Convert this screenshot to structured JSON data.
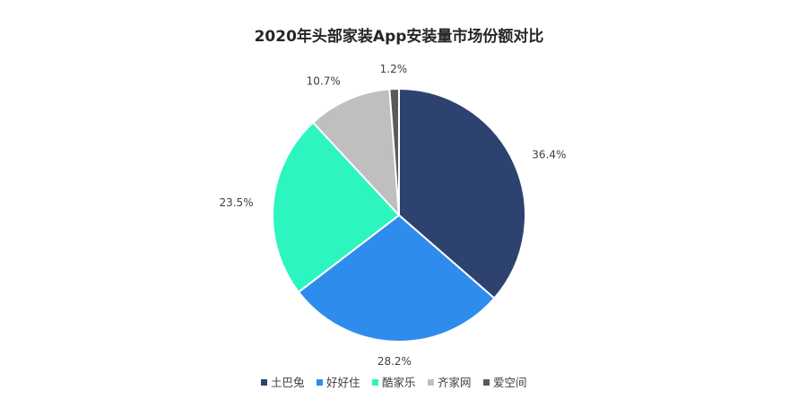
{
  "chart_data": {
    "type": "pie",
    "title": "2020年头部家装App安装量市场份额对比",
    "slices": [
      {
        "name": "土巴兔",
        "value": 36.4,
        "label": "36.4%",
        "color": "#2e4270"
      },
      {
        "name": "好好住",
        "value": 28.2,
        "label": "28.2%",
        "color": "#2e8ced"
      },
      {
        "name": "酷家乐",
        "value": 23.5,
        "label": "23.5%",
        "color": "#2df5bf"
      },
      {
        "name": "齐家网",
        "value": 10.7,
        "label": "10.7%",
        "color": "#bfbfbf"
      },
      {
        "name": "爱空间",
        "value": 1.2,
        "label": "1.2%",
        "color": "#595959"
      }
    ],
    "legend_position": "bottom",
    "start_angle": "12 o'clock",
    "direction": "clockwise"
  }
}
